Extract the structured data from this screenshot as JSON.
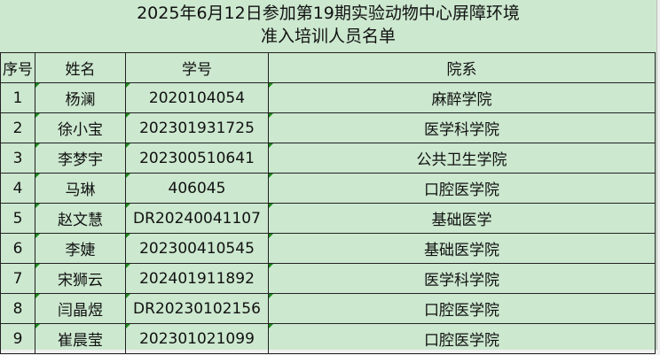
{
  "title_line1": "2025年6月12日参加第19期实验动物中心屏障环境",
  "title_line2": "准入培训人员名单",
  "headers": [
    "序号",
    "姓名",
    "学号",
    "院系"
  ],
  "rows": [
    [
      "1",
      "杨澜",
      "2020104054",
      "麻醉学院"
    ],
    [
      "2",
      "徐小宝",
      "202301931725",
      "医学科学院"
    ],
    [
      "3",
      "李梦宇",
      "202300510641",
      "公共卫生学院"
    ],
    [
      "4",
      "马琳",
      "406045",
      "口腔医学院"
    ],
    [
      "5",
      "赵文慧",
      "DR20240041107",
      "基础医学"
    ],
    [
      "6",
      "李婕",
      "202300410545",
      "基础医学院"
    ],
    [
      "7",
      "宋狮云",
      "202401911892",
      "医学科学院"
    ],
    [
      "8",
      "闫晶煜",
      "DR20230102156",
      "口腔医学院"
    ],
    [
      "9",
      "崔晨莹",
      "202301021099",
      "口腔医学院"
    ]
  ],
  "colors": {
    "background": "#cce8cf",
    "note_marker": "#1a8a1a"
  }
}
